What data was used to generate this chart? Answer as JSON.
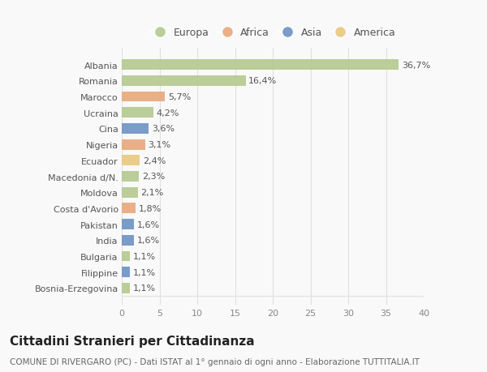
{
  "categories": [
    "Albania",
    "Romania",
    "Marocco",
    "Ucraina",
    "Cina",
    "Nigeria",
    "Ecuador",
    "Macedonia d/N.",
    "Moldova",
    "Costa d'Avorio",
    "Pakistan",
    "India",
    "Bulgaria",
    "Filippine",
    "Bosnia-Erzegovina"
  ],
  "values": [
    36.7,
    16.4,
    5.7,
    4.2,
    3.6,
    3.1,
    2.4,
    2.3,
    2.1,
    1.8,
    1.6,
    1.6,
    1.1,
    1.1,
    1.1
  ],
  "labels": [
    "36,7%",
    "16,4%",
    "5,7%",
    "4,2%",
    "3,6%",
    "3,1%",
    "2,4%",
    "2,3%",
    "2,1%",
    "1,8%",
    "1,6%",
    "1,6%",
    "1,1%",
    "1,1%",
    "1,1%"
  ],
  "colors": [
    "#b5c98e",
    "#b5c98e",
    "#e8a87c",
    "#b5c98e",
    "#6b92c4",
    "#e8a87c",
    "#e8c97c",
    "#b5c98e",
    "#b5c98e",
    "#e8a87c",
    "#6b92c4",
    "#6b92c4",
    "#b5c98e",
    "#6b92c4",
    "#b5c98e"
  ],
  "continent_colors": {
    "Europa": "#b5c98e",
    "Africa": "#e8a87c",
    "Asia": "#6b92c4",
    "America": "#e8c97c"
  },
  "title": "Cittadini Stranieri per Cittadinanza",
  "subtitle": "COMUNE DI RIVERGARO (PC) - Dati ISTAT al 1° gennaio di ogni anno - Elaborazione TUTTITALIA.IT",
  "xlim": [
    0,
    40
  ],
  "xticks": [
    0,
    5,
    10,
    15,
    20,
    25,
    30,
    35,
    40
  ],
  "background_color": "#f9f9f9",
  "grid_color": "#e0e0e0",
  "bar_height": 0.65,
  "title_fontsize": 11,
  "subtitle_fontsize": 7.5,
  "label_fontsize": 8,
  "tick_fontsize": 8,
  "legend_fontsize": 9
}
